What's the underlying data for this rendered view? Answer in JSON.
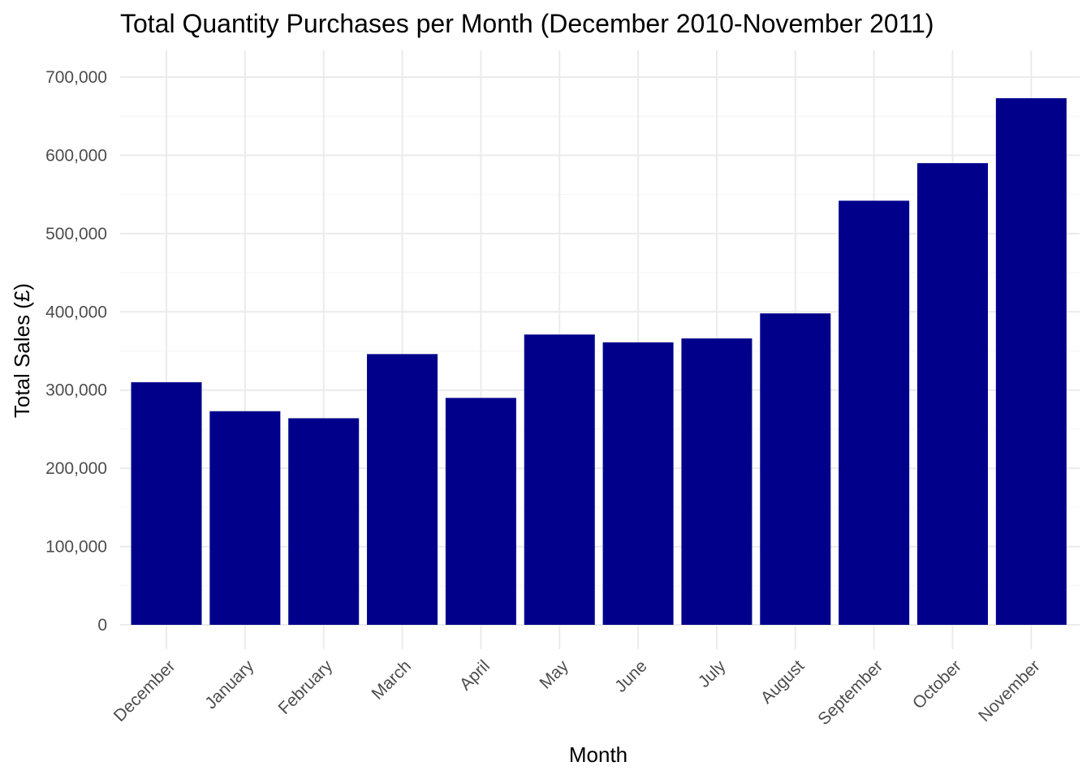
{
  "chart_data": {
    "type": "bar",
    "title": "Total Quantity Purchases per Month (December 2010-November 2011)",
    "xlabel": "Month",
    "ylabel": "Total Sales (£)",
    "categories": [
      "December",
      "January",
      "February",
      "March",
      "April",
      "May",
      "June",
      "July",
      "August",
      "September",
      "October",
      "November"
    ],
    "values": [
      310000,
      273000,
      264000,
      346000,
      290000,
      371000,
      361000,
      366000,
      398000,
      542000,
      590000,
      673000
    ],
    "ylim": [
      0,
      700000
    ],
    "y_ticks": [
      0,
      100000,
      200000,
      300000,
      400000,
      500000,
      600000,
      700000
    ],
    "y_tick_labels": [
      "0",
      "100,000",
      "200,000",
      "300,000",
      "400,000",
      "500,000",
      "600,000",
      "700,000"
    ],
    "bar_color": "#00008b",
    "grid": true,
    "legend": "none"
  }
}
